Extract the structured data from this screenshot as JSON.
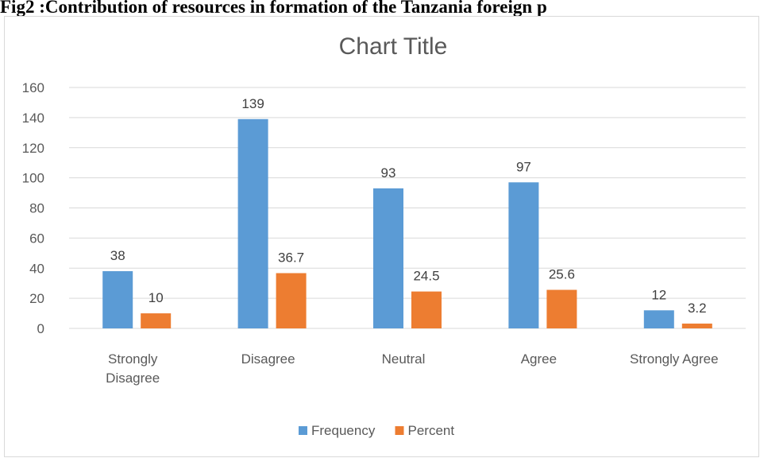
{
  "caption": "Fig2 :Contribution of resources in formation of the Tanzania foreign p",
  "chart_data": {
    "type": "bar",
    "title": "Chart Title",
    "categories": [
      [
        "Strongly",
        "Disagree"
      ],
      [
        "Disagree"
      ],
      [
        "Neutral"
      ],
      [
        "Agree"
      ],
      [
        "Strongly Agree"
      ]
    ],
    "series": [
      {
        "name": "Frequency",
        "color": "#5b9bd5",
        "values": [
          38,
          139,
          93,
          97,
          12
        ],
        "labels": [
          "38",
          "139",
          "93",
          "97",
          "12"
        ]
      },
      {
        "name": "Percent",
        "color": "#ed7d31",
        "values": [
          10,
          36.7,
          24.5,
          25.6,
          3.2
        ],
        "labels": [
          "10",
          "36.7",
          "24.5",
          "25.6",
          "3.2"
        ]
      }
    ],
    "yticks": [
      "0",
      "20",
      "40",
      "60",
      "80",
      "100",
      "120",
      "140",
      "160"
    ],
    "ylim": [
      0,
      160
    ],
    "xlabel": "",
    "ylabel": "",
    "grid": true,
    "legend_position": "bottom"
  }
}
